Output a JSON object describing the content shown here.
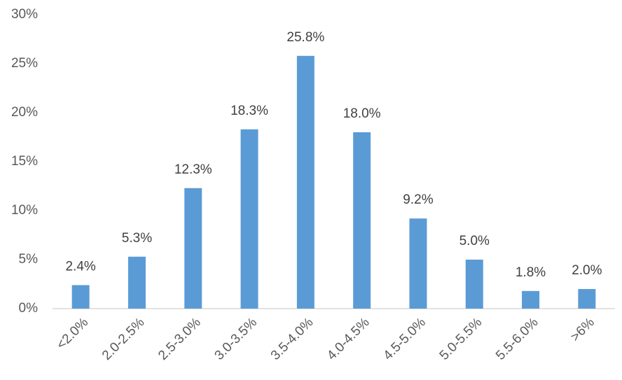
{
  "chart_data": {
    "type": "bar",
    "categories": [
      "<2.0%",
      "2.0-2.5%",
      "2.5-3.0%",
      "3.0-3.5%",
      "3.5-4.0%",
      "4.0-4.5%",
      "4.5-5.0%",
      "5.0-5.5%",
      "5.5-6.0%",
      ">6%"
    ],
    "values": [
      2.4,
      5.3,
      12.3,
      18.3,
      25.8,
      18.0,
      9.2,
      5.0,
      1.8,
      2.0
    ],
    "value_labels": [
      "2.4%",
      "5.3%",
      "12.3%",
      "18.3%",
      "25.8%",
      "18.0%",
      "9.2%",
      "5.0%",
      "1.8%",
      "2.0%"
    ],
    "color": "#5b9bd5",
    "ylim": [
      0,
      30
    ],
    "yticks": [
      {
        "value": 0,
        "label": "0%"
      },
      {
        "value": 5,
        "label": "5%"
      },
      {
        "value": 10,
        "label": "10%"
      },
      {
        "value": 15,
        "label": "15%"
      },
      {
        "value": 20,
        "label": "20%"
      },
      {
        "value": 25,
        "label": "25%"
      },
      {
        "value": 30,
        "label": "30%"
      }
    ],
    "grid": false
  }
}
